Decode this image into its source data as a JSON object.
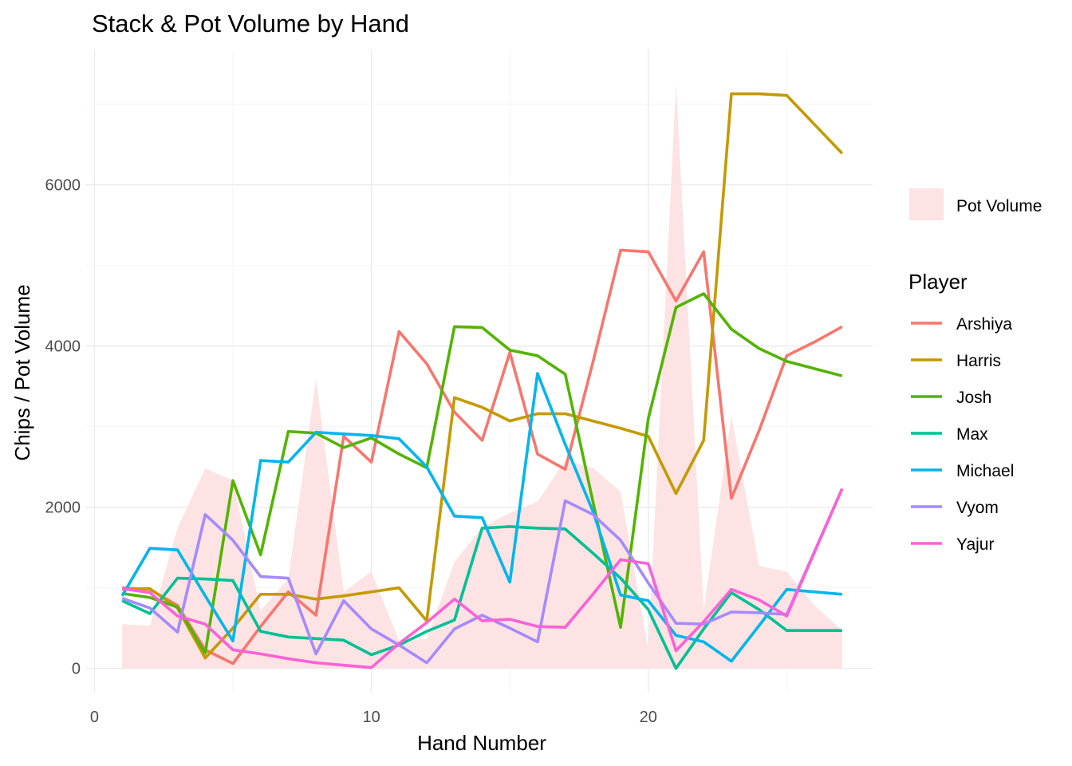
{
  "chart_data": {
    "type": "line",
    "title": "Stack & Pot Volume by Hand",
    "xlabel": "Hand Number",
    "ylabel": "Chips / Pot Volume",
    "xlim": [
      -0.3,
      28.1
    ],
    "ylim": [
      -300,
      7680
    ],
    "x_ticks": [
      0,
      10,
      20
    ],
    "y_ticks": [
      0,
      2000,
      4000,
      6000
    ],
    "x_tick_labels": [
      "0",
      "10",
      "20"
    ],
    "y_tick_labels": [
      "0",
      "2000",
      "4000",
      "6000"
    ],
    "grid": true,
    "legend_position": "right",
    "area": {
      "name": "Pot Volume",
      "color": "#fde3e3",
      "x": [
        1,
        2,
        3,
        4,
        5,
        6,
        7,
        8,
        9,
        10,
        11,
        12,
        13,
        14,
        15,
        16,
        17,
        18,
        19,
        20,
        21,
        22,
        23,
        24,
        25,
        26,
        27
      ],
      "values": [
        550,
        530,
        1740,
        2480,
        2330,
        720,
        1110,
        3590,
        950,
        1200,
        340,
        370,
        1320,
        1750,
        1930,
        2070,
        2580,
        2490,
        2190,
        220,
        7250,
        720,
        3130,
        1270,
        1200,
        780,
        470
      ]
    },
    "legend_title": "Player",
    "series": [
      {
        "name": "Arshiya",
        "color": "#f8766d",
        "x": [
          1,
          2,
          3,
          4,
          5,
          6,
          7,
          8,
          9,
          10,
          11,
          12,
          13,
          14,
          15,
          16,
          17,
          18,
          19,
          20,
          21,
          22,
          23,
          24,
          25,
          26,
          27
        ],
        "values": [
          1000,
          980,
          780,
          230,
          60,
          520,
          950,
          660,
          2880,
          2560,
          4180,
          3780,
          3180,
          2830,
          3920,
          2660,
          2470,
          3800,
          5190,
          5170,
          4560,
          5170,
          2110,
          2950,
          3880,
          4050,
          4240
        ]
      },
      {
        "name": "Harris",
        "color": "#c49a00",
        "x": [
          1,
          2,
          3,
          4,
          5,
          6,
          7,
          8,
          9,
          10,
          11,
          12,
          13,
          14,
          15,
          16,
          17,
          18,
          19,
          20,
          21,
          22,
          23,
          24,
          25,
          26,
          27
        ],
        "values": [
          980,
          990,
          750,
          130,
          500,
          920,
          920,
          860,
          900,
          950,
          1000,
          590,
          3360,
          3240,
          3070,
          3160,
          3160,
          3070,
          2980,
          2880,
          2170,
          2830,
          7130,
          7130,
          7110,
          6750,
          6390
        ]
      },
      {
        "name": "Josh",
        "color": "#53b400",
        "x": [
          1,
          2,
          3,
          4,
          5,
          6,
          7,
          8,
          9,
          10,
          11,
          12,
          13,
          14,
          15,
          16,
          17,
          18,
          19,
          20,
          21,
          22,
          23,
          24,
          25,
          26,
          27
        ],
        "values": [
          930,
          880,
          760,
          190,
          2330,
          1410,
          2940,
          2920,
          2740,
          2860,
          2660,
          2490,
          4240,
          4230,
          3950,
          3880,
          3650,
          2070,
          510,
          3100,
          4480,
          4650,
          4210,
          3970,
          3810,
          3720,
          3630
        ]
      },
      {
        "name": "Max",
        "color": "#00c094",
        "x": [
          1,
          2,
          3,
          4,
          5,
          6,
          7,
          8,
          9,
          10,
          11,
          12,
          13,
          14,
          15,
          16,
          17,
          18,
          19,
          20,
          21,
          22,
          23,
          24,
          25,
          26,
          27
        ],
        "values": [
          840,
          680,
          1120,
          1110,
          1090,
          460,
          390,
          370,
          350,
          170,
          290,
          460,
          600,
          1740,
          1760,
          1740,
          1730,
          1430,
          1120,
          730,
          0,
          490,
          940,
          730,
          470,
          470,
          470
        ]
      },
      {
        "name": "Michael",
        "color": "#00b6eb",
        "x": [
          1,
          2,
          3,
          4,
          5,
          6,
          7,
          8,
          9,
          10,
          11,
          12,
          13,
          14,
          15,
          16,
          17,
          18,
          19,
          20,
          21,
          22,
          23,
          24,
          25,
          26,
          27
        ],
        "values": [
          900,
          1490,
          1470,
          900,
          340,
          2580,
          2560,
          2930,
          2910,
          2890,
          2850,
          2500,
          1890,
          1870,
          1070,
          3660,
          2780,
          1950,
          910,
          840,
          410,
          330,
          90,
          530,
          980,
          950,
          920
        ]
      },
      {
        "name": "Vyom",
        "color": "#a58aff",
        "x": [
          1,
          2,
          3,
          4,
          5,
          6,
          7,
          8,
          9,
          10,
          11,
          12,
          13,
          14,
          15,
          16,
          17,
          18,
          19,
          20,
          21,
          22,
          23,
          24,
          25,
          26,
          27
        ],
        "values": [
          870,
          750,
          450,
          1910,
          1590,
          1140,
          1120,
          180,
          840,
          490,
          290,
          70,
          490,
          660,
          500,
          330,
          2080,
          1910,
          1590,
          1060,
          560,
          550,
          700,
          690,
          670,
          1450,
          2230
        ]
      },
      {
        "name": "Yajur",
        "color": "#fb61d7",
        "x": [
          1,
          2,
          3,
          4,
          5,
          6,
          7,
          8,
          9,
          10,
          11,
          12,
          13,
          14,
          15,
          16,
          17,
          18,
          19,
          20,
          21,
          22,
          23,
          24,
          25,
          26,
          27
        ],
        "values": [
          990,
          940,
          650,
          550,
          230,
          180,
          120,
          70,
          40,
          10,
          310,
          570,
          860,
          590,
          610,
          520,
          510,
          920,
          1350,
          1300,
          220,
          580,
          980,
          850,
          650,
          1440,
          2230
        ]
      }
    ]
  }
}
